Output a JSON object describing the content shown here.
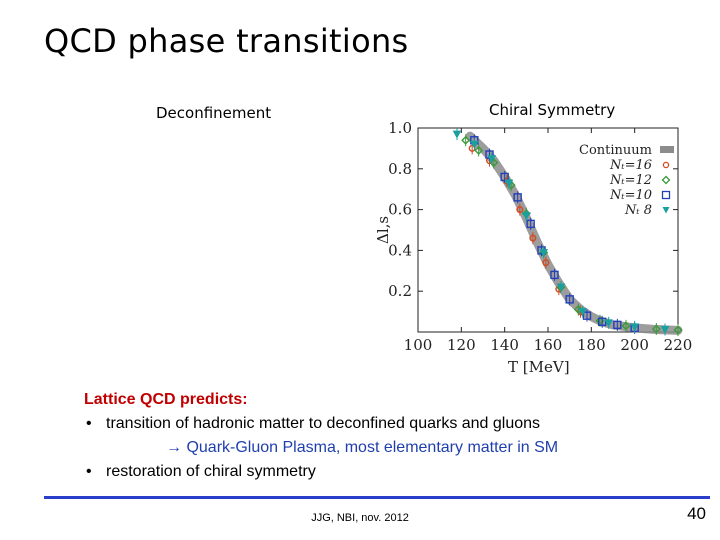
{
  "slide": {
    "title": "QCD phase transitions",
    "labels": {
      "left": "Deconfinement",
      "right": "Chiral Symmetry"
    },
    "heading": "Lattice QCD predicts:",
    "bullets": [
      "transition of hadronic matter to deconfined quarks and gluons",
      "restoration of chiral symmetry"
    ],
    "bullet_marker": "•",
    "sub_item": "→ Quark-Gluon Plasma, most elementary matter in SM",
    "footer": "JJG, NBI, nov. 2012",
    "page_number": "40",
    "colors": {
      "heading": "#c00000",
      "sub_item": "#1f3fae",
      "rule": "#2b3ec9"
    }
  },
  "chart_data": {
    "type": "scatter",
    "xlabel": "T [MeV]",
    "ylabel": "Δl,s",
    "xlim": [
      100,
      220
    ],
    "ylim": [
      0,
      1.0
    ],
    "xticks": [
      100,
      120,
      140,
      160,
      180,
      200,
      220
    ],
    "yticks": [
      0.2,
      0.4,
      0.6,
      0.8,
      1.0
    ],
    "grid": false,
    "legend_position": "top-right",
    "series": [
      {
        "name": "Continuum",
        "color": "#8c8c8c",
        "x": [
          124,
          130,
          135,
          140,
          145,
          150,
          155,
          160,
          165,
          170,
          175,
          180,
          185,
          190,
          200,
          210,
          220
        ],
        "y": [
          0.96,
          0.9,
          0.84,
          0.76,
          0.67,
          0.56,
          0.44,
          0.33,
          0.24,
          0.16,
          0.11,
          0.075,
          0.05,
          0.035,
          0.02,
          0.012,
          0.008
        ]
      },
      {
        "name": "Nₜ=16",
        "color": "#d24a1f",
        "x": [
          125,
          133,
          141,
          147,
          153,
          159,
          165,
          175
        ],
        "y": [
          0.9,
          0.84,
          0.74,
          0.6,
          0.46,
          0.34,
          0.21,
          0.1
        ]
      },
      {
        "name": "Nₜ=12",
        "color": "#3b9a3b",
        "x": [
          122,
          128,
          135,
          143,
          150,
          158,
          166,
          174,
          184,
          196,
          210,
          220
        ],
        "y": [
          0.94,
          0.89,
          0.83,
          0.72,
          0.58,
          0.39,
          0.22,
          0.11,
          0.055,
          0.03,
          0.015,
          0.01
        ]
      },
      {
        "name": "Nₜ=10",
        "color": "#2340b8",
        "x": [
          126,
          133,
          140,
          146,
          152,
          157,
          163,
          170,
          178,
          185,
          192,
          200
        ],
        "y": [
          0.94,
          0.87,
          0.76,
          0.66,
          0.53,
          0.4,
          0.28,
          0.16,
          0.08,
          0.05,
          0.035,
          0.02
        ]
      },
      {
        "name": "Nₜ 8",
        "color": "#1aa0a0",
        "x": [
          118,
          126,
          134,
          142,
          150,
          158,
          166,
          176,
          188,
          200,
          214
        ],
        "y": [
          0.97,
          0.92,
          0.85,
          0.73,
          0.57,
          0.39,
          0.22,
          0.1,
          0.045,
          0.025,
          0.012
        ]
      }
    ]
  }
}
